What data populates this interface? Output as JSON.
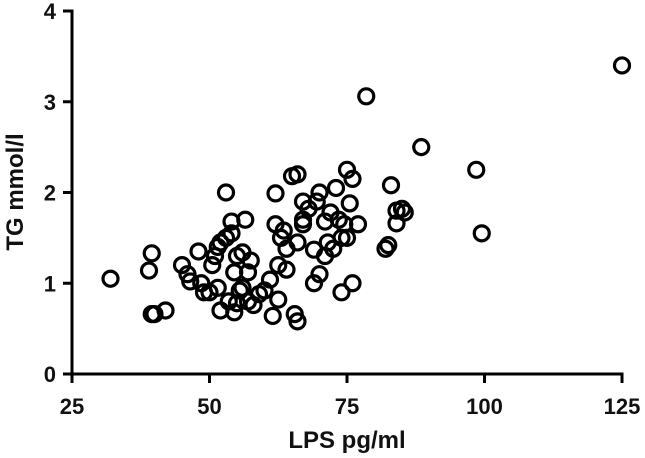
{
  "chart_data": {
    "type": "scatter",
    "title": "",
    "xlabel": "LPS pg/ml",
    "ylabel": "TG mmol/l",
    "xlim": [
      25,
      125
    ],
    "ylim": [
      0,
      4
    ],
    "xticks": [
      25,
      50,
      75,
      100,
      125
    ],
    "yticks": [
      0,
      1,
      2,
      3,
      4
    ],
    "grid": false,
    "legend": "none",
    "marker_color": "#000000",
    "points": [
      [
        32,
        1.05
      ],
      [
        39,
        1.14
      ],
      [
        39.5,
        1.33
      ],
      [
        39.5,
        0.66
      ],
      [
        40,
        0.66
      ],
      [
        42,
        0.7
      ],
      [
        45,
        1.2
      ],
      [
        46,
        1.1
      ],
      [
        46.5,
        1.02
      ],
      [
        48,
        1.35
      ],
      [
        48.5,
        1.0
      ],
      [
        49,
        0.9
      ],
      [
        50,
        0.9
      ],
      [
        50.5,
        1.2
      ],
      [
        51,
        1.3
      ],
      [
        51.5,
        1.4
      ],
      [
        51.5,
        0.95
      ],
      [
        52,
        1.45
      ],
      [
        52,
        0.7
      ],
      [
        53,
        1.5
      ],
      [
        53,
        2.0
      ],
      [
        53.5,
        0.8
      ],
      [
        54,
        1.55
      ],
      [
        54,
        1.68
      ],
      [
        54.5,
        1.12
      ],
      [
        54.5,
        0.68
      ],
      [
        55,
        1.3
      ],
      [
        55,
        0.78
      ],
      [
        55.5,
        0.92
      ],
      [
        56,
        1.34
      ],
      [
        56,
        0.95
      ],
      [
        56.5,
        1.7
      ],
      [
        57,
        1.12
      ],
      [
        57,
        0.8
      ],
      [
        57.5,
        1.25
      ],
      [
        58,
        0.76
      ],
      [
        59,
        0.88
      ],
      [
        60,
        0.92
      ],
      [
        61,
        1.04
      ],
      [
        61.5,
        0.64
      ],
      [
        62,
        1.99
      ],
      [
        62,
        1.65
      ],
      [
        62.5,
        1.2
      ],
      [
        62.5,
        0.82
      ],
      [
        63,
        1.5
      ],
      [
        63.5,
        1.58
      ],
      [
        64,
        1.38
      ],
      [
        64,
        1.15
      ],
      [
        65,
        2.18
      ],
      [
        65.5,
        0.66
      ],
      [
        66,
        2.2
      ],
      [
        66,
        1.45
      ],
      [
        66,
        0.58
      ],
      [
        67,
        1.9
      ],
      [
        67,
        1.7
      ],
      [
        67,
        1.65
      ],
      [
        68,
        1.82
      ],
      [
        69,
        1.37
      ],
      [
        69,
        1.0
      ],
      [
        69.5,
        1.9
      ],
      [
        70,
        2.0
      ],
      [
        70,
        1.1
      ],
      [
        71,
        1.68
      ],
      [
        71,
        1.3
      ],
      [
        71.5,
        1.45
      ],
      [
        72,
        1.78
      ],
      [
        72.5,
        1.38
      ],
      [
        73,
        2.05
      ],
      [
        73.5,
        1.7
      ],
      [
        74,
        1.5
      ],
      [
        74,
        0.9
      ],
      [
        74.5,
        1.65
      ],
      [
        75,
        2.25
      ],
      [
        75,
        1.5
      ],
      [
        75.5,
        1.88
      ],
      [
        76,
        2.15
      ],
      [
        76,
        1.0
      ],
      [
        77,
        1.65
      ],
      [
        78.5,
        3.06
      ],
      [
        82,
        1.38
      ],
      [
        82.5,
        1.42
      ],
      [
        83,
        2.08
      ],
      [
        84,
        1.8
      ],
      [
        84,
        1.66
      ],
      [
        85,
        1.82
      ],
      [
        85.5,
        1.78
      ],
      [
        88.5,
        2.5
      ],
      [
        98.5,
        2.25
      ],
      [
        99.5,
        1.55
      ],
      [
        125,
        3.4
      ]
    ]
  }
}
